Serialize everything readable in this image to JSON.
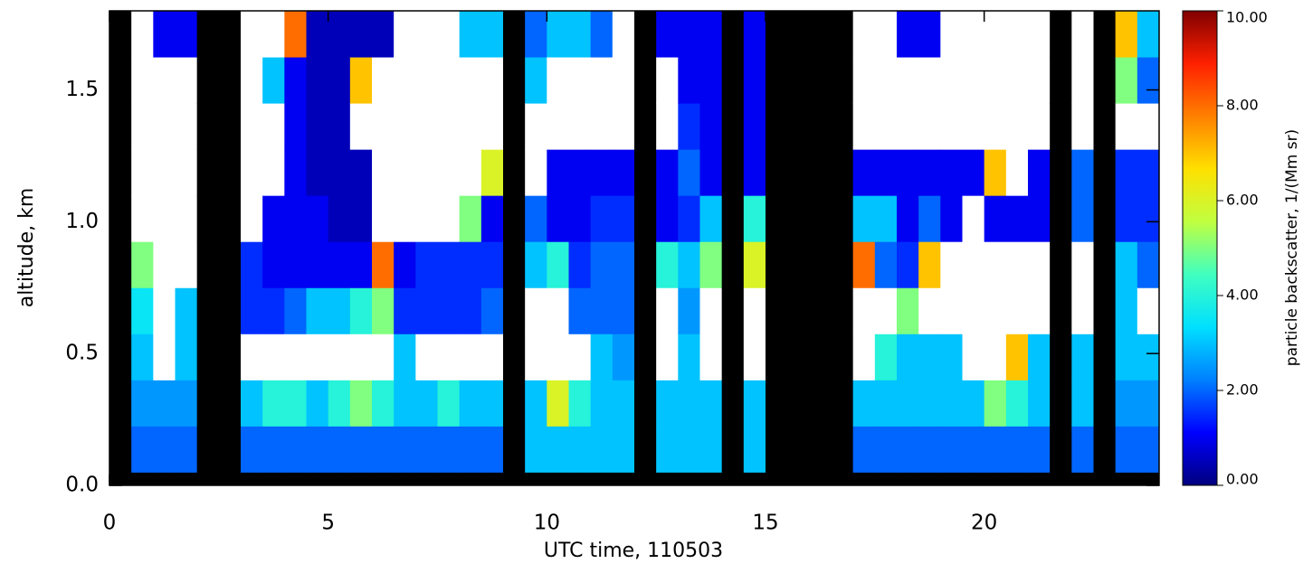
{
  "chart_data": {
    "type": "heatmap",
    "xlabel": "UTC time, 110503",
    "ylabel": "altitude, km",
    "colorbar_label": "particle backscatter, 1/(Mm sr)",
    "xlim": [
      0,
      24
    ],
    "ylim": [
      0,
      1.8
    ],
    "xticks": [
      0,
      5,
      10,
      15,
      20
    ],
    "yticks": [
      {
        "value": 0,
        "label": "0.0"
      },
      0.5,
      {
        "value": 1,
        "label": "1.0"
      },
      1.5
    ],
    "zlim": [
      0,
      10
    ],
    "zticks": [
      {
        "value": 0,
        "label": "0.00"
      },
      {
        "value": 2,
        "label": "2.00"
      },
      {
        "value": 4,
        "label": "4.00"
      },
      {
        "value": 6,
        "label": "6.00"
      },
      {
        "value": 8,
        "label": "8.00"
      },
      {
        "value": 10,
        "label": "10.00"
      }
    ],
    "colormap": [
      "#00007f",
      "#0000ff",
      "#0080ff",
      "#00e0ff",
      "#40ffc0",
      "#c0ff40",
      "#ffe000",
      "#ff8000",
      "#ff2000",
      "#800000"
    ],
    "over_color": "#ffffff",
    "nan_color": "#000000",
    "xbins": [
      0,
      0.5,
      1,
      1.5,
      2,
      2.5,
      3,
      3.5,
      4,
      4.5,
      5,
      5.5,
      6,
      6.5,
      7,
      7.5,
      8,
      8.5,
      9,
      9.5,
      10,
      10.5,
      11,
      11.5,
      12,
      12.5,
      13,
      13.5,
      14,
      14.5,
      15,
      15.5,
      16,
      16.5,
      17,
      17.5,
      18,
      18.5,
      19,
      19.5,
      20,
      20.5,
      21,
      21.5,
      22,
      22.5,
      23,
      23.5,
      24
    ],
    "ybins": [
      0.05,
      0.225,
      0.4,
      0.575,
      0.75,
      0.925,
      1.1,
      1.275,
      1.45,
      1.625,
      1.8
    ],
    "values": [
      [
        null,
        null,
        null,
        null,
        null,
        null,
        null,
        null,
        null,
        null
      ],
      [
        2,
        2.5,
        3,
        3.5,
        5,
        15,
        15,
        15,
        15,
        15
      ],
      [
        2,
        2.5,
        15,
        15,
        15,
        15,
        15,
        15,
        15,
        1
      ],
      [
        2,
        2.5,
        3,
        3,
        15,
        15,
        15,
        15,
        15,
        1
      ],
      [
        null,
        null,
        null,
        null,
        null,
        null,
        null,
        null,
        null,
        null
      ],
      [
        null,
        null,
        null,
        null,
        null,
        null,
        null,
        null,
        null,
        null
      ],
      [
        2,
        3,
        15,
        1.5,
        1.5,
        15,
        15,
        15,
        15,
        15
      ],
      [
        2,
        4,
        15,
        1.5,
        1,
        1,
        15,
        15,
        3,
        15
      ],
      [
        2,
        4,
        15,
        2,
        1,
        1,
        1,
        1,
        1,
        8
      ],
      [
        2,
        3,
        15,
        3,
        1,
        1,
        0.5,
        0.5,
        0.5,
        0.5
      ],
      [
        2,
        4,
        15,
        3,
        1,
        0.5,
        0.5,
        0.5,
        0.5,
        0.5
      ],
      [
        2,
        5,
        15,
        4,
        1,
        0.5,
        0.5,
        15,
        7,
        0.5
      ],
      [
        2,
        4,
        15,
        5,
        8,
        15,
        15,
        15,
        15,
        0.5
      ],
      [
        2,
        3,
        3,
        1.5,
        1,
        15,
        15,
        15,
        15,
        15
      ],
      [
        2,
        3,
        15,
        1.5,
        1.5,
        15,
        15,
        15,
        15,
        15
      ],
      [
        2,
        4,
        15,
        1.5,
        1.5,
        15,
        15,
        15,
        15,
        15
      ],
      [
        2,
        3,
        15,
        1.5,
        1.5,
        5,
        15,
        15,
        15,
        3
      ],
      [
        2,
        3,
        15,
        2,
        1.5,
        1,
        6,
        15,
        15,
        3
      ],
      [
        null,
        null,
        null,
        null,
        null,
        null,
        null,
        null,
        null,
        null
      ],
      [
        3,
        3,
        15,
        15,
        3,
        2,
        15,
        15,
        3,
        2
      ],
      [
        3,
        6,
        15,
        15,
        4,
        1,
        1,
        15,
        15,
        3
      ],
      [
        3,
        4,
        15,
        2,
        1.5,
        1,
        1,
        15,
        15,
        3
      ],
      [
        3,
        3,
        3,
        2,
        2,
        1.5,
        1,
        15,
        15,
        2
      ],
      [
        3,
        3,
        2.5,
        2,
        2,
        1.5,
        1,
        15,
        15,
        15
      ],
      [
        null,
        null,
        null,
        null,
        null,
        null,
        null,
        null,
        null,
        null
      ],
      [
        3,
        3,
        15,
        15,
        4,
        1,
        1,
        15,
        15,
        1
      ],
      [
        3,
        3,
        3,
        2.5,
        3,
        1.5,
        2,
        1.5,
        1,
        1
      ],
      [
        3,
        3,
        15,
        15,
        5,
        3,
        1,
        1,
        1,
        1
      ],
      [
        null,
        null,
        null,
        null,
        null,
        null,
        null,
        null,
        null,
        null
      ],
      [
        3,
        3,
        15,
        15,
        6,
        4,
        1,
        1,
        1,
        1
      ],
      [
        null,
        null,
        null,
        null,
        null,
        null,
        null,
        null,
        null,
        null
      ],
      [
        null,
        null,
        null,
        null,
        null,
        null,
        null,
        null,
        null,
        null
      ],
      [
        null,
        null,
        null,
        null,
        null,
        null,
        null,
        null,
        null,
        null
      ],
      [
        null,
        null,
        null,
        null,
        null,
        null,
        null,
        null,
        null,
        null
      ],
      [
        2,
        3,
        15,
        15,
        8,
        3,
        1,
        15,
        15,
        15
      ],
      [
        2,
        3,
        4,
        15,
        2,
        3,
        1,
        15,
        15,
        15
      ],
      [
        2,
        3,
        3,
        5,
        1.5,
        1,
        1,
        15,
        15,
        1
      ],
      [
        2,
        3,
        3,
        15,
        7,
        2,
        1,
        15,
        15,
        1
      ],
      [
        2,
        3,
        3,
        15,
        15,
        1,
        1,
        15,
        15,
        15
      ],
      [
        2,
        3,
        15,
        15,
        15,
        15,
        1,
        15,
        15,
        15
      ],
      [
        2,
        5,
        15,
        15,
        15,
        1,
        7,
        15,
        15,
        15
      ],
      [
        2,
        4,
        7,
        15,
        15,
        1,
        15,
        15,
        15,
        15
      ],
      [
        2,
        3,
        3,
        15,
        15,
        1,
        1,
        15,
        15,
        15
      ],
      [
        null,
        null,
        null,
        null,
        null,
        null,
        null,
        null,
        null,
        null
      ],
      [
        2,
        3,
        3,
        15,
        15,
        2,
        2,
        15,
        15,
        15
      ],
      [
        null,
        null,
        null,
        null,
        null,
        null,
        null,
        null,
        null,
        null
      ],
      [
        2,
        2.5,
        3,
        3,
        3,
        1.5,
        1.5,
        15,
        5,
        7
      ],
      [
        2,
        2.5,
        3,
        15,
        2,
        1.5,
        1.5,
        15,
        2,
        3
      ]
    ]
  }
}
